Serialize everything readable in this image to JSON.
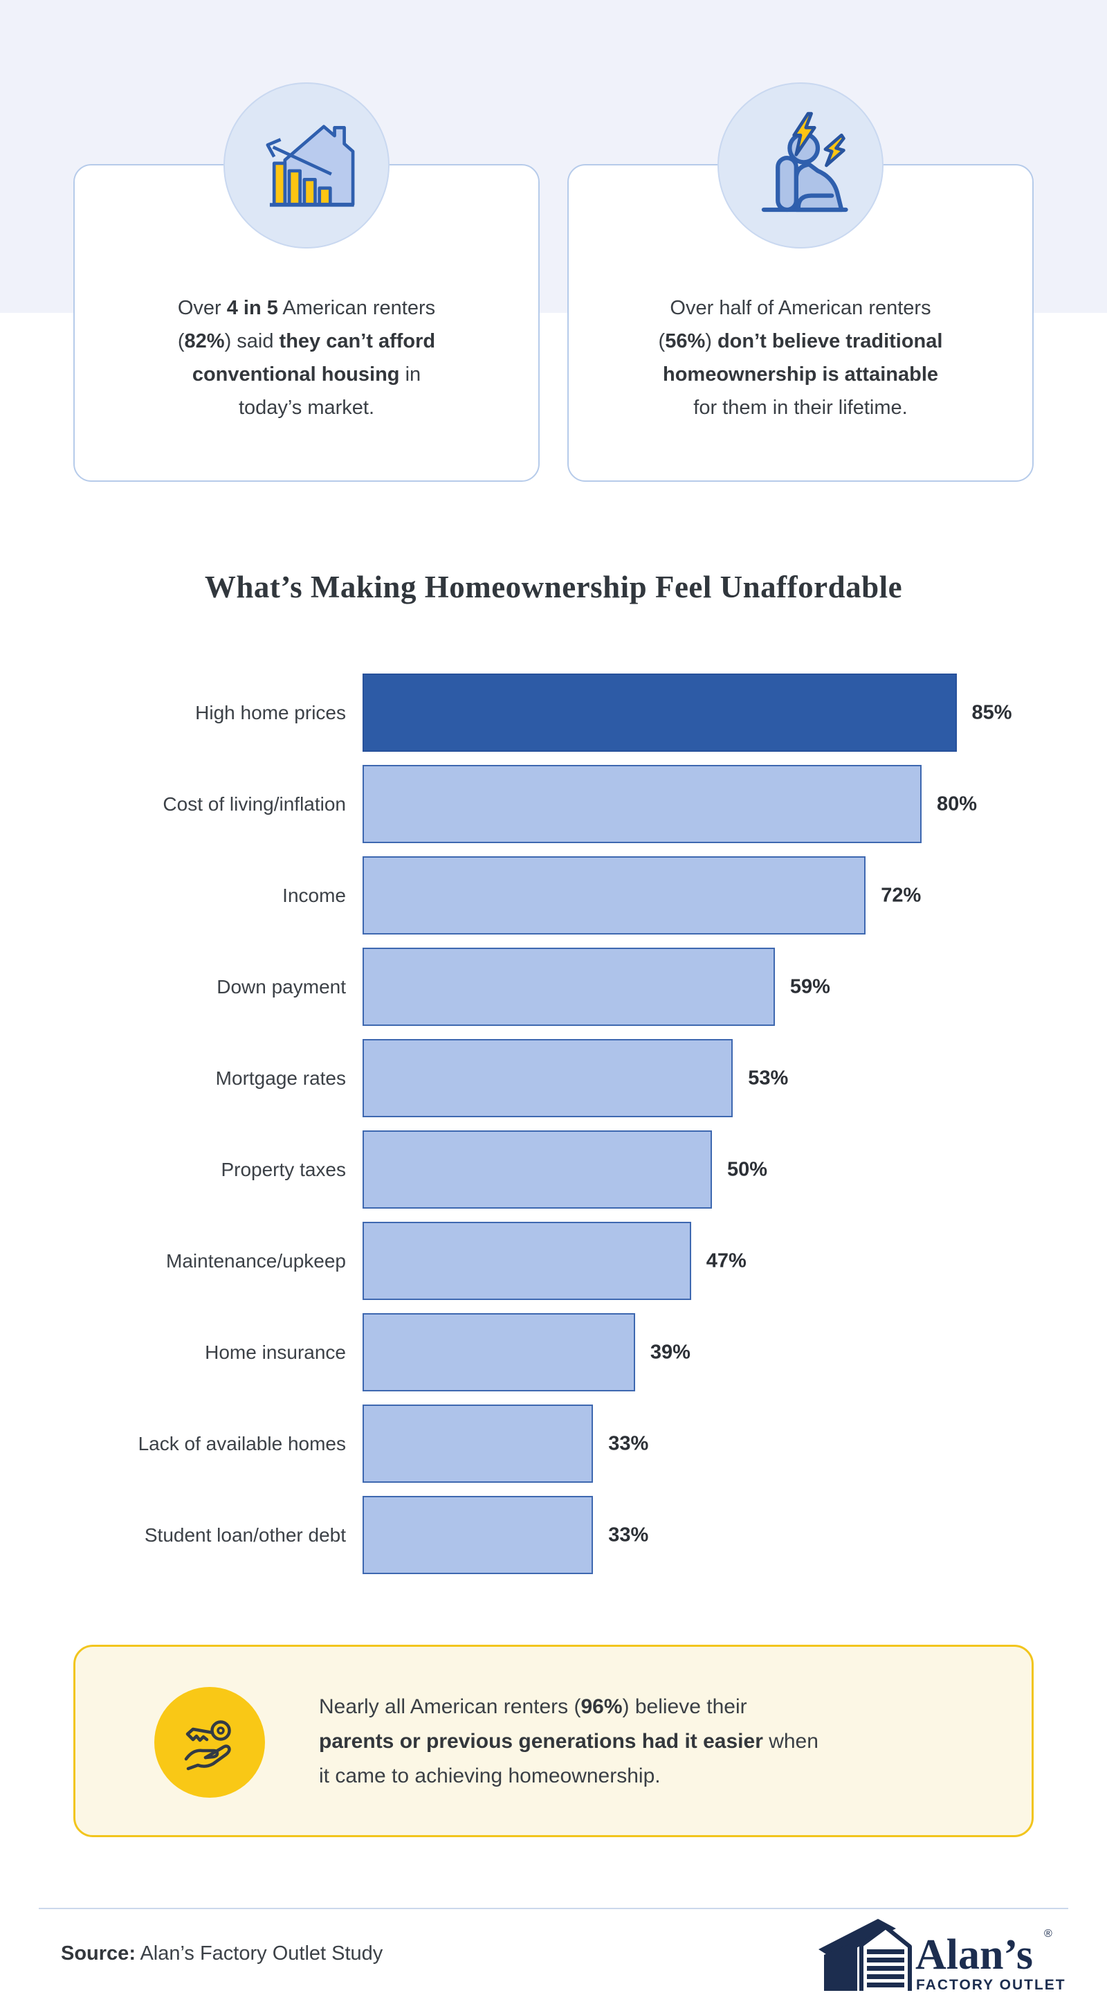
{
  "colors": {
    "band": "#f0f2fa",
    "card_border": "#b6cbea",
    "icon_circle_fill": "#dde7f6",
    "icon_blue_fill": "#aec3e8",
    "icon_blue_stroke": "#2f5fae",
    "accent_yellow": "#fdc513",
    "bar_primary": "#2d5ba6",
    "bar_secondary": "#aec3ea",
    "bar_border": "#3e68b0",
    "callout_bg": "#fcf7e5",
    "callout_border": "#f2c51d",
    "callout_circle": "#f9c816",
    "text_dark": "#3a3f45",
    "logo_navy": "#1c2d4f",
    "divider": "#cbd8ec"
  },
  "stat_cards": [
    {
      "icon": "house-chart-decline-icon",
      "segments": [
        {
          "t": "Over "
        },
        {
          "t": "4 in 5",
          "b": true
        },
        {
          "t": " American renters\n("
        },
        {
          "t": "82%",
          "b": true
        },
        {
          "t": ") said "
        },
        {
          "t": "they can’t afford\nconventional housing",
          "b": true
        },
        {
          "t": " in\ntoday’s market."
        }
      ]
    },
    {
      "icon": "stressed-person-icon",
      "segments": [
        {
          "t": "Over half of American renters\n("
        },
        {
          "t": "56%",
          "b": true
        },
        {
          "t": ") "
        },
        {
          "t": "don’t believe traditional\nhomeownership is attainable",
          "b": true
        },
        {
          "t": "\nfor them in their lifetime."
        }
      ]
    }
  ],
  "chart_section": {
    "title": "What’s Making Homeownership Feel Unaffordable"
  },
  "chart_data": {
    "type": "bar",
    "orientation": "horizontal",
    "title": "What’s Making Homeownership Feel Unaffordable",
    "categories": [
      "High home prices",
      "Cost of living/inflation",
      "Income",
      "Down payment",
      "Mortgage rates",
      "Property taxes",
      "Maintenance/upkeep",
      "Home insurance",
      "Lack of available homes",
      "Student loan/other debt"
    ],
    "values": [
      85,
      80,
      72,
      59,
      53,
      50,
      47,
      39,
      33,
      33
    ],
    "value_labels": [
      "85%",
      "80%",
      "72%",
      "59%",
      "53%",
      "50%",
      "47%",
      "39%",
      "33%",
      "33%"
    ],
    "xlabel": "",
    "ylabel": "",
    "xlim": [
      0,
      100
    ],
    "grid": false,
    "legend": "none",
    "highlight_first_bar": true
  },
  "callout": {
    "icon": "key-in-hand-icon",
    "segments": [
      {
        "t": "Nearly all American renters ("
      },
      {
        "t": "96%",
        "b": true
      },
      {
        "t": ") believe their\n"
      },
      {
        "t": "parents or previous generations had it easier",
        "b": true
      },
      {
        "t": " when\nit came to achieving homeownership."
      }
    ]
  },
  "footer": {
    "source_label": "Source:",
    "source_text": " Alan’s Factory Outlet Study",
    "logo": {
      "name": "Alan’s",
      "registered": "®",
      "tagline": "FACTORY OUTLET"
    }
  }
}
